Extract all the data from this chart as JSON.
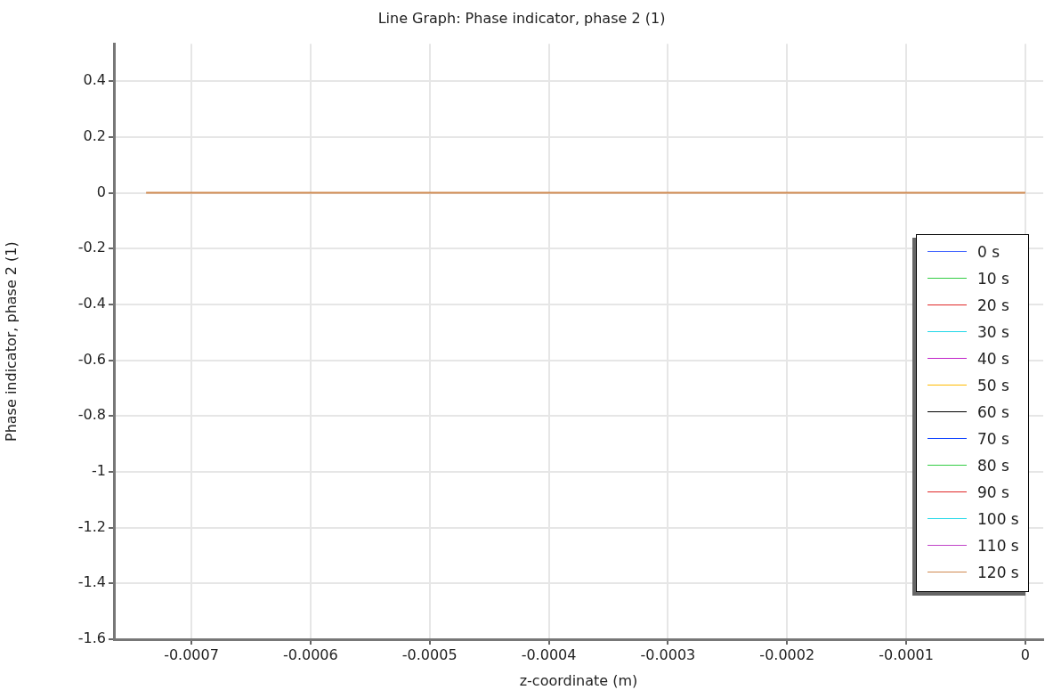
{
  "chart_data": {
    "type": "line",
    "title": "Line Graph: Phase indicator, phase 2 (1)",
    "xlabel": "z-coordinate (m)",
    "ylabel": "Phase indicator, phase 2 (1)",
    "x": [
      -0.000738,
      0
    ],
    "series": [
      {
        "name": "0 s",
        "color": "#4466ff",
        "values": [
          null,
          null
        ]
      },
      {
        "name": "10 s",
        "color": "#33cc44",
        "values": [
          null,
          null
        ]
      },
      {
        "name": "20 s",
        "color": "#e02828",
        "values": [
          null,
          null
        ]
      },
      {
        "name": "30 s",
        "color": "#22d8e8",
        "values": [
          null,
          null
        ]
      },
      {
        "name": "40 s",
        "color": "#c022c8",
        "values": [
          null,
          null
        ]
      },
      {
        "name": "50 s",
        "color": "#ffbb00",
        "values": [
          null,
          null
        ]
      },
      {
        "name": "60 s",
        "color": "#000000",
        "values": [
          null,
          null
        ]
      },
      {
        "name": "70 s",
        "color": "#1144ff",
        "values": [
          null,
          null
        ]
      },
      {
        "name": "80 s",
        "color": "#33cc44",
        "values": [
          null,
          null
        ]
      },
      {
        "name": "90 s",
        "color": "#e02828",
        "values": [
          null,
          null
        ]
      },
      {
        "name": "100 s",
        "color": "#22d8e8",
        "values": [
          null,
          null
        ]
      },
      {
        "name": "110 s",
        "color": "#c044c8",
        "values": [
          null,
          null
        ]
      },
      {
        "name": "120 s",
        "color": "#d08a50",
        "values": [
          0,
          0
        ]
      }
    ],
    "xlim": [
      -0.000765,
      1.5e-05
    ],
    "xticks": [
      -0.0007,
      -0.0006,
      -0.0005,
      -0.0004,
      -0.0003,
      -0.0002,
      -0.0001,
      0
    ],
    "ylim": [
      -1.6,
      0.534
    ],
    "yticks": [
      0.4,
      0.2,
      0,
      -0.2,
      -0.4,
      -0.6,
      -0.8,
      -1,
      -1.2,
      -1.4,
      -1.6
    ],
    "grid": true,
    "legend": "right",
    "marker": "none",
    "line_style": "solid"
  }
}
